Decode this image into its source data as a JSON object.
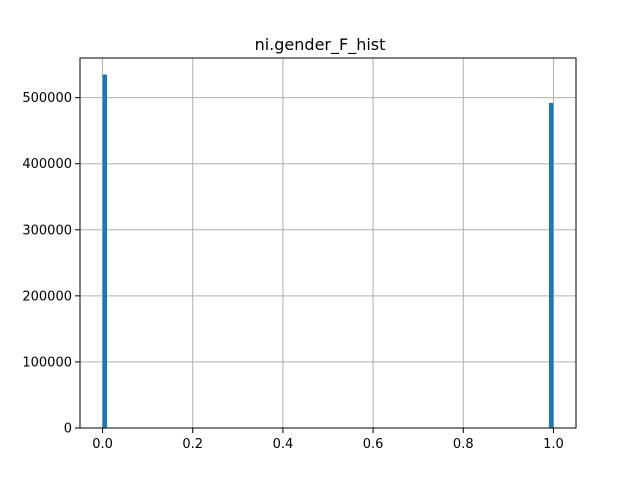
{
  "chart_data": {
    "type": "bar",
    "title": "ni.gender_F_hist",
    "xlabel": "",
    "ylabel": "",
    "xlim": [
      -0.05,
      1.05
    ],
    "ylim": [
      0,
      560000
    ],
    "grid": true,
    "bar_color": "#1f77b4",
    "x_ticks": [
      0.0,
      0.2,
      0.4,
      0.6,
      0.8,
      1.0
    ],
    "x_tick_labels": [
      "0.0",
      "0.2",
      "0.4",
      "0.6",
      "0.8",
      "1.0"
    ],
    "y_ticks": [
      0,
      100000,
      200000,
      300000,
      400000,
      500000
    ],
    "y_tick_labels": [
      "0",
      "100000",
      "200000",
      "300000",
      "400000",
      "500000"
    ],
    "bins": [
      {
        "x_start": 0.0,
        "x_end": 0.01,
        "value": 535000
      },
      {
        "x_start": 0.99,
        "x_end": 1.0,
        "value": 492000
      }
    ]
  }
}
